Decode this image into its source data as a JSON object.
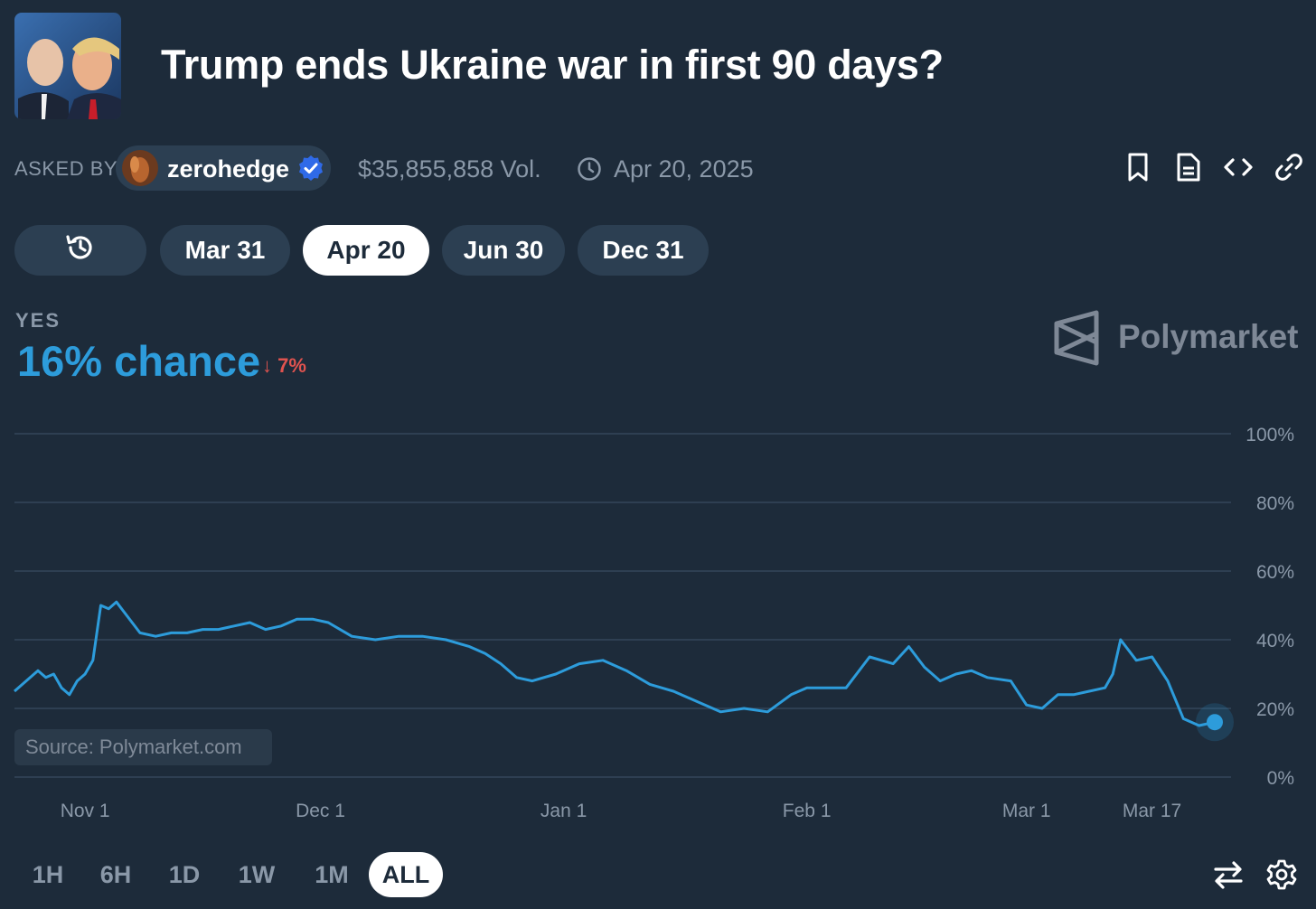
{
  "header": {
    "title": "Trump ends Ukraine war in first 90 days?",
    "thumbnail": "market-thumbnail-image"
  },
  "meta": {
    "asked_by_label": "ASKED BY",
    "username": "zerohedge",
    "verified_icon": "verified-badge-icon",
    "volume": "$35,855,858 Vol.",
    "end_date": "Apr 20, 2025"
  },
  "actions": [
    "bookmark-icon",
    "document-icon",
    "embed-code-icon",
    "link-icon"
  ],
  "date_pills": {
    "history_icon": "history-icon",
    "items": [
      "Mar 31",
      "Apr 20",
      "Jun 30",
      "Dec 31"
    ],
    "active": "Apr 20"
  },
  "outcome": {
    "label": "YES",
    "chance": "16% chance",
    "delta": "7%",
    "delta_direction": "down",
    "brand": "Polymarket"
  },
  "source": "Source: Polymarket.com",
  "time_ranges": {
    "items": [
      "1H",
      "6H",
      "1D",
      "1W",
      "1M",
      "ALL"
    ],
    "active": "ALL"
  },
  "bottom_icons": [
    "swap-arrows-icon",
    "settings-gear-icon"
  ],
  "colors": {
    "background": "#1d2b3a",
    "line": "#2d9cdb",
    "delta_red": "#e0534f",
    "muted": "#8a98a8"
  },
  "chart_data": {
    "type": "line",
    "ylim": [
      0,
      100
    ],
    "y_ticks": [
      "100%",
      "80%",
      "60%",
      "40%",
      "20%",
      "0%"
    ],
    "x_ticks": [
      "Nov 1",
      "Dec 1",
      "Jan 1",
      "Feb 1",
      "Mar 1",
      "Mar 17"
    ],
    "grid": true,
    "series": [
      {
        "x": [
          "Oct 23",
          "Oct 24",
          "Oct 25",
          "Oct 26",
          "Oct 27",
          "Oct 28",
          "Oct 29",
          "Oct 30",
          "Oct 31",
          "Nov 1",
          "Nov 2",
          "Nov 3",
          "Nov 4",
          "Nov 5",
          "Nov 6",
          "Nov 7",
          "Nov 8",
          "Nov 10",
          "Nov 12",
          "Nov 14",
          "Nov 16",
          "Nov 18",
          "Nov 20",
          "Nov 22",
          "Nov 24",
          "Nov 26",
          "Nov 28",
          "Nov 30",
          "Dec 2",
          "Dec 5",
          "Dec 8",
          "Dec 11",
          "Dec 14",
          "Dec 17",
          "Dec 20",
          "Dec 22",
          "Dec 24",
          "Dec 26",
          "Dec 28",
          "Dec 31",
          "Jan 3",
          "Jan 6",
          "Jan 9",
          "Jan 12",
          "Jan 15",
          "Jan 18",
          "Jan 21",
          "Jan 24",
          "Jan 27",
          "Jan 30",
          "Feb 1",
          "Feb 3",
          "Feb 6",
          "Feb 9",
          "Feb 12",
          "Feb 14",
          "Feb 16",
          "Feb 18",
          "Feb 20",
          "Feb 22",
          "Feb 24",
          "Feb 27",
          "Mar 1",
          "Mar 3",
          "Mar 5",
          "Mar 7",
          "Mar 9",
          "Mar 11",
          "Mar 12",
          "Mar 13",
          "Mar 15",
          "Mar 17",
          "Mar 19",
          "Mar 21",
          "Mar 23",
          "Mar 25"
        ],
        "y": [
          25,
          27,
          29,
          31,
          29,
          30,
          26,
          24,
          28,
          30,
          34,
          50,
          49,
          51,
          48,
          45,
          42,
          41,
          42,
          42,
          43,
          43,
          44,
          45,
          43,
          44,
          46,
          46,
          45,
          41,
          40,
          41,
          41,
          40,
          38,
          36,
          33,
          29,
          28,
          30,
          33,
          34,
          31,
          27,
          25,
          22,
          19,
          20,
          19,
          24,
          26,
          26,
          26,
          35,
          33,
          38,
          32,
          28,
          30,
          31,
          29,
          28,
          21,
          20,
          24,
          24,
          25,
          26,
          30,
          40,
          34,
          35,
          28,
          17,
          15,
          16
        ]
      }
    ]
  }
}
